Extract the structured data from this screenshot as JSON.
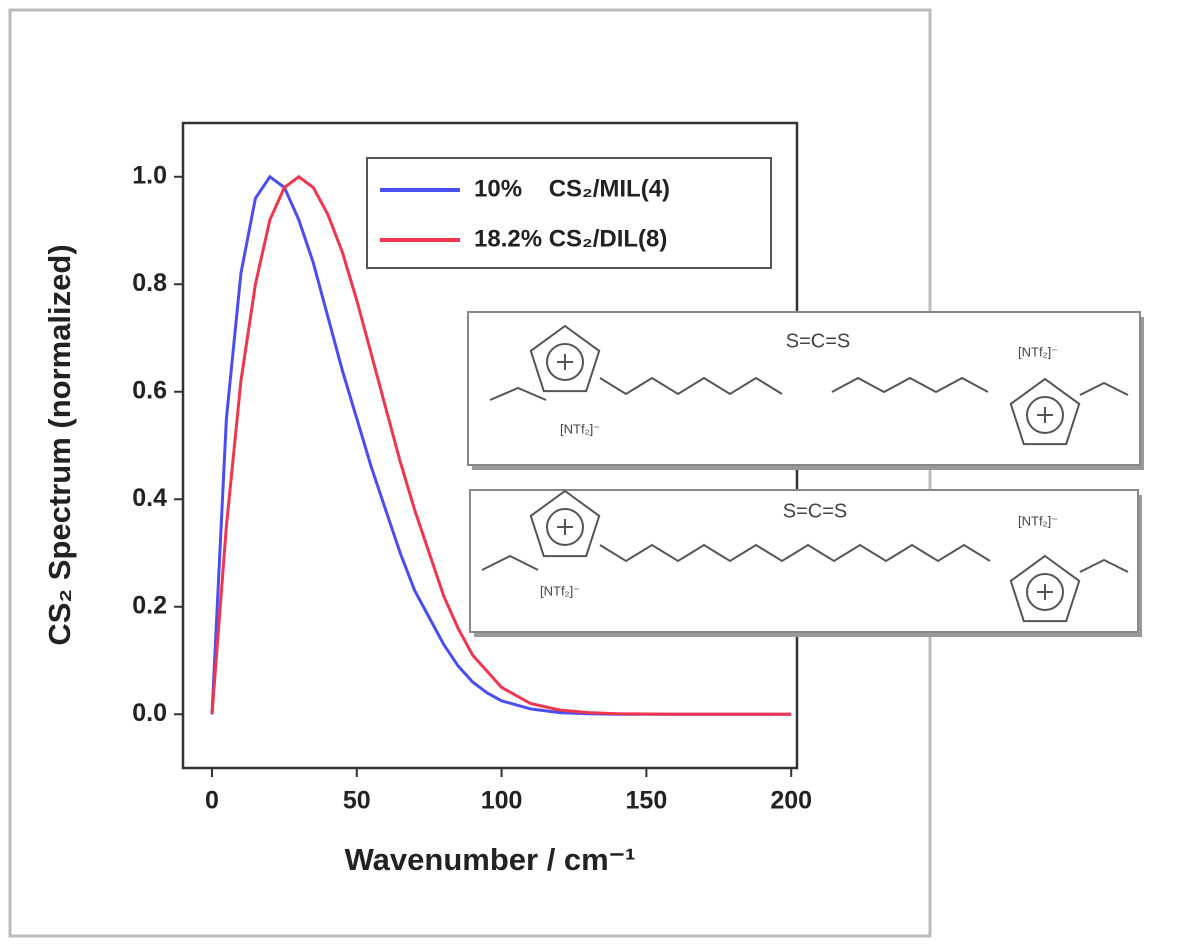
{
  "chart_data": {
    "type": "line",
    "x_label": "Wavenumber / cm⁻¹",
    "y_label": "CS₂ Spectrum (normalized)",
    "x": [
      0,
      5,
      10,
      15,
      20,
      25,
      30,
      35,
      40,
      45,
      50,
      55,
      60,
      65,
      70,
      75,
      80,
      85,
      90,
      95,
      100,
      110,
      120,
      130,
      140,
      160,
      180,
      200
    ],
    "series": [
      {
        "name": "10%    CS₂/MIL(4)",
        "color": "#4a4ef0",
        "values": [
          0,
          0.55,
          0.82,
          0.96,
          1.0,
          0.98,
          0.92,
          0.84,
          0.74,
          0.64,
          0.55,
          0.46,
          0.38,
          0.3,
          0.23,
          0.18,
          0.13,
          0.09,
          0.06,
          0.04,
          0.025,
          0.01,
          0.003,
          0.001,
          0,
          0,
          0,
          0
        ]
      },
      {
        "name": "18.2% CS₂/DIL(8)",
        "color": "#f0364e",
        "values": [
          0,
          0.35,
          0.62,
          0.8,
          0.92,
          0.98,
          1.0,
          0.98,
          0.93,
          0.86,
          0.77,
          0.67,
          0.57,
          0.47,
          0.38,
          0.3,
          0.22,
          0.16,
          0.11,
          0.08,
          0.05,
          0.02,
          0.008,
          0.003,
          0.001,
          0,
          0,
          0
        ]
      }
    ],
    "xlim": [
      -10,
      202
    ],
    "ylim": [
      -0.1,
      1.1
    ],
    "xticks": [
      0,
      50,
      100,
      150,
      200
    ],
    "yticks": [
      {
        "value": 0,
        "label": "0.0"
      },
      0.2,
      0.4,
      0.6,
      0.8,
      {
        "value": 1,
        "label": "1.0"
      }
    ],
    "legend": "upper right"
  },
  "insets": [
    {
      "solvent": "S=C=S",
      "anion_labels": [
        "[NTf₂]⁻",
        "[NTf₂]⁻"
      ]
    },
    {
      "solvent": "S=C=S",
      "anion_labels": [
        "[NTf₂]⁻",
        "[NTf₂]⁻"
      ]
    }
  ]
}
